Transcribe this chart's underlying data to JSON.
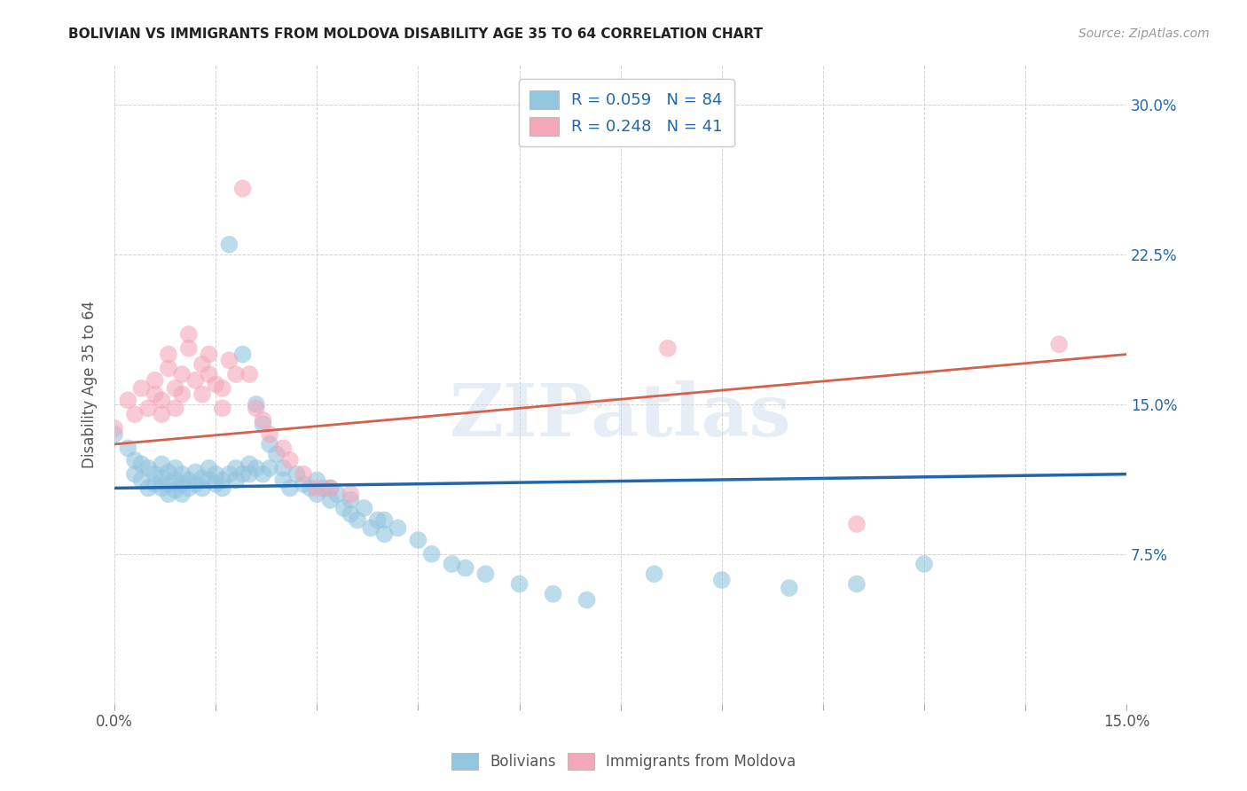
{
  "title": "BOLIVIAN VS IMMIGRANTS FROM MOLDOVA DISABILITY AGE 35 TO 64 CORRELATION CHART",
  "source": "Source: ZipAtlas.com",
  "ylabel_label": "Disability Age 35 to 64",
  "legend1_text": "R = 0.059   N = 84",
  "legend2_text": "R = 0.248   N = 41",
  "legend_bottom1": "Bolivians",
  "legend_bottom2": "Immigrants from Moldova",
  "watermark": "ZIPatlas",
  "blue_color": "#92c5de",
  "pink_color": "#f4a7b9",
  "line_blue": "#2166ac",
  "line_pink": "#d6604d",
  "blue_scatter": [
    [
      0.0,
      0.135
    ],
    [
      0.002,
      0.128
    ],
    [
      0.003,
      0.122
    ],
    [
      0.003,
      0.115
    ],
    [
      0.004,
      0.12
    ],
    [
      0.004,
      0.112
    ],
    [
      0.005,
      0.118
    ],
    [
      0.005,
      0.108
    ],
    [
      0.006,
      0.115
    ],
    [
      0.006,
      0.11
    ],
    [
      0.007,
      0.12
    ],
    [
      0.007,
      0.113
    ],
    [
      0.007,
      0.108
    ],
    [
      0.008,
      0.116
    ],
    [
      0.008,
      0.11
    ],
    [
      0.008,
      0.105
    ],
    [
      0.009,
      0.118
    ],
    [
      0.009,
      0.112
    ],
    [
      0.009,
      0.107
    ],
    [
      0.01,
      0.115
    ],
    [
      0.01,
      0.11
    ],
    [
      0.01,
      0.105
    ],
    [
      0.011,
      0.112
    ],
    [
      0.011,
      0.108
    ],
    [
      0.012,
      0.116
    ],
    [
      0.012,
      0.11
    ],
    [
      0.013,
      0.113
    ],
    [
      0.013,
      0.108
    ],
    [
      0.014,
      0.118
    ],
    [
      0.014,
      0.112
    ],
    [
      0.015,
      0.115
    ],
    [
      0.015,
      0.11
    ],
    [
      0.016,
      0.112
    ],
    [
      0.016,
      0.108
    ],
    [
      0.017,
      0.23
    ],
    [
      0.017,
      0.115
    ],
    [
      0.018,
      0.118
    ],
    [
      0.018,
      0.112
    ],
    [
      0.019,
      0.175
    ],
    [
      0.019,
      0.115
    ],
    [
      0.02,
      0.12
    ],
    [
      0.02,
      0.115
    ],
    [
      0.021,
      0.15
    ],
    [
      0.021,
      0.118
    ],
    [
      0.022,
      0.14
    ],
    [
      0.022,
      0.115
    ],
    [
      0.023,
      0.13
    ],
    [
      0.023,
      0.118
    ],
    [
      0.024,
      0.125
    ],
    [
      0.025,
      0.118
    ],
    [
      0.025,
      0.112
    ],
    [
      0.026,
      0.108
    ],
    [
      0.027,
      0.115
    ],
    [
      0.028,
      0.11
    ],
    [
      0.029,
      0.108
    ],
    [
      0.03,
      0.105
    ],
    [
      0.03,
      0.112
    ],
    [
      0.031,
      0.108
    ],
    [
      0.032,
      0.102
    ],
    [
      0.032,
      0.108
    ],
    [
      0.033,
      0.105
    ],
    [
      0.034,
      0.098
    ],
    [
      0.035,
      0.095
    ],
    [
      0.035,
      0.102
    ],
    [
      0.036,
      0.092
    ],
    [
      0.037,
      0.098
    ],
    [
      0.038,
      0.088
    ],
    [
      0.039,
      0.092
    ],
    [
      0.04,
      0.085
    ],
    [
      0.04,
      0.092
    ],
    [
      0.042,
      0.088
    ],
    [
      0.045,
      0.082
    ],
    [
      0.047,
      0.075
    ],
    [
      0.05,
      0.07
    ],
    [
      0.052,
      0.068
    ],
    [
      0.055,
      0.065
    ],
    [
      0.06,
      0.06
    ],
    [
      0.065,
      0.055
    ],
    [
      0.07,
      0.052
    ],
    [
      0.08,
      0.065
    ],
    [
      0.09,
      0.062
    ],
    [
      0.1,
      0.058
    ],
    [
      0.11,
      0.06
    ],
    [
      0.12,
      0.07
    ]
  ],
  "pink_scatter": [
    [
      0.0,
      0.138
    ],
    [
      0.002,
      0.152
    ],
    [
      0.003,
      0.145
    ],
    [
      0.004,
      0.158
    ],
    [
      0.005,
      0.148
    ],
    [
      0.006,
      0.155
    ],
    [
      0.006,
      0.162
    ],
    [
      0.007,
      0.145
    ],
    [
      0.007,
      0.152
    ],
    [
      0.008,
      0.168
    ],
    [
      0.008,
      0.175
    ],
    [
      0.009,
      0.158
    ],
    [
      0.009,
      0.148
    ],
    [
      0.01,
      0.165
    ],
    [
      0.01,
      0.155
    ],
    [
      0.011,
      0.178
    ],
    [
      0.011,
      0.185
    ],
    [
      0.012,
      0.162
    ],
    [
      0.013,
      0.17
    ],
    [
      0.013,
      0.155
    ],
    [
      0.014,
      0.175
    ],
    [
      0.014,
      0.165
    ],
    [
      0.015,
      0.16
    ],
    [
      0.016,
      0.148
    ],
    [
      0.016,
      0.158
    ],
    [
      0.017,
      0.172
    ],
    [
      0.018,
      0.165
    ],
    [
      0.019,
      0.258
    ],
    [
      0.02,
      0.165
    ],
    [
      0.021,
      0.148
    ],
    [
      0.022,
      0.142
    ],
    [
      0.023,
      0.135
    ],
    [
      0.025,
      0.128
    ],
    [
      0.026,
      0.122
    ],
    [
      0.028,
      0.115
    ],
    [
      0.03,
      0.108
    ],
    [
      0.032,
      0.108
    ],
    [
      0.035,
      0.105
    ],
    [
      0.082,
      0.178
    ],
    [
      0.11,
      0.09
    ],
    [
      0.14,
      0.18
    ]
  ],
  "blue_line_x": [
    0.0,
    0.15
  ],
  "blue_line_y": [
    0.108,
    0.115
  ],
  "pink_line_x": [
    0.0,
    0.15
  ],
  "pink_line_y": [
    0.13,
    0.175
  ],
  "xlim": [
    0.0,
    0.15
  ],
  "ylim": [
    0.0,
    0.32
  ],
  "text_color_blue": "#2166ac",
  "text_color_pink": "#c2185b",
  "bg_color": "#ffffff",
  "grid_color": "#cccccc"
}
